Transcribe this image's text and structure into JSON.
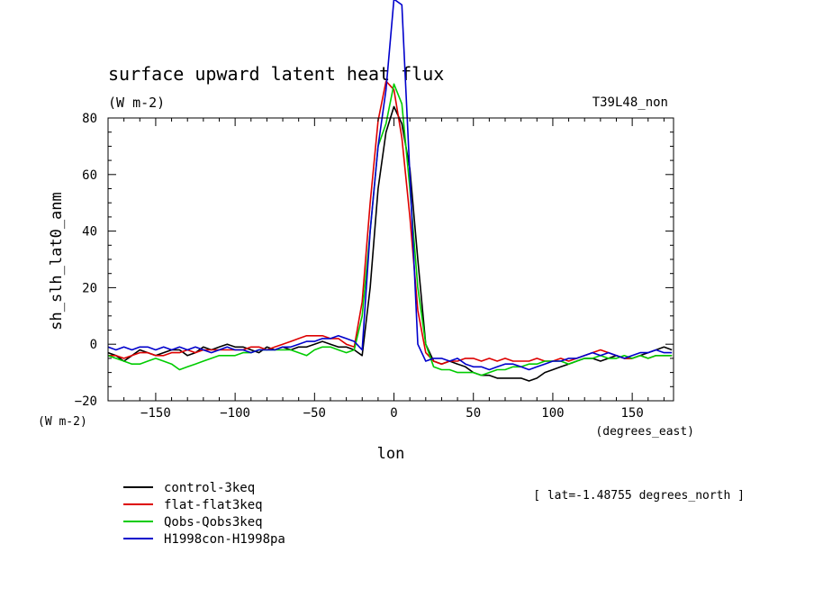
{
  "chart_data": {
    "type": "line",
    "title": "surface upward latent heat flux",
    "units_top": "(W m-2)",
    "units_left": "(W m-2)",
    "experiment_label": "T39L48_non",
    "xlabel": "lon",
    "x_units": "(degrees_east)",
    "ylabel": "sh_slh_lat0_anm",
    "note": "[ lat=-1.48755 degrees_north ]",
    "xlim": [
      -180,
      176
    ],
    "ylim": [
      -20,
      80
    ],
    "xticks": [
      -150,
      -100,
      -50,
      0,
      50,
      100,
      150
    ],
    "yticks": [
      -20,
      0,
      20,
      40,
      60,
      80
    ],
    "xticks_labels": [
      "−150",
      "−100",
      "−50",
      "0",
      "50",
      "100",
      "150"
    ],
    "yticks_labels": [
      "−20",
      "0",
      "20",
      "40",
      "60",
      "80"
    ],
    "x": [
      -180,
      -175,
      -170,
      -165,
      -160,
      -155,
      -150,
      -145,
      -140,
      -135,
      -130,
      -125,
      -120,
      -115,
      -110,
      -105,
      -100,
      -95,
      -90,
      -85,
      -80,
      -75,
      -70,
      -65,
      -60,
      -55,
      -50,
      -45,
      -40,
      -35,
      -30,
      -25,
      -20,
      -15,
      -10,
      -5,
      0,
      5,
      10,
      15,
      20,
      25,
      30,
      35,
      40,
      45,
      50,
      55,
      60,
      65,
      70,
      75,
      80,
      85,
      90,
      95,
      100,
      105,
      110,
      115,
      120,
      125,
      130,
      135,
      140,
      145,
      150,
      155,
      160,
      165,
      170,
      175
    ],
    "series": [
      {
        "name": "control-3keq",
        "color": "#000000",
        "values": [
          -3,
          -4,
          -6,
          -4,
          -2,
          -3,
          -4,
          -3,
          -2,
          -2,
          -4,
          -3,
          -1,
          -2,
          -1,
          0,
          -1,
          -1,
          -2,
          -3,
          -1,
          -2,
          -1,
          -2,
          -1,
          -1,
          0,
          1,
          0,
          -1,
          -1,
          -2,
          -4,
          20,
          55,
          75,
          84,
          78,
          62,
          30,
          0,
          -6,
          -7,
          -6,
          -7,
          -8,
          -10,
          -11,
          -11,
          -12,
          -12,
          -12,
          -12,
          -13,
          -12,
          -10,
          -9,
          -8,
          -7,
          -6,
          -5,
          -5,
          -6,
          -5,
          -4,
          -5,
          -5,
          -4,
          -3,
          -2,
          -1,
          -2
        ]
      },
      {
        "name": "flat-flat3keq",
        "color": "#dd0000",
        "values": [
          -4,
          -4,
          -5,
          -4,
          -3,
          -3,
          -4,
          -4,
          -3,
          -3,
          -2,
          -3,
          -2,
          -2,
          -2,
          -2,
          -2,
          -2,
          -1,
          -1,
          -2,
          -1,
          0,
          1,
          2,
          3,
          3,
          3,
          2,
          2,
          0,
          -1,
          15,
          50,
          79,
          93,
          90,
          73,
          45,
          12,
          -3,
          -6,
          -7,
          -6,
          -6,
          -5,
          -5,
          -6,
          -5,
          -6,
          -5,
          -6,
          -6,
          -6,
          -5,
          -6,
          -6,
          -5,
          -6,
          -5,
          -4,
          -3,
          -2,
          -3,
          -4,
          -5,
          -5,
          -4,
          -5,
          -4,
          -4,
          -4
        ]
      },
      {
        "name": "Qobs-Qobs3keq",
        "color": "#00cc00",
        "values": [
          -4,
          -5,
          -6,
          -7,
          -7,
          -6,
          -5,
          -6,
          -7,
          -9,
          -8,
          -7,
          -6,
          -5,
          -4,
          -4,
          -4,
          -3,
          -3,
          -2,
          -2,
          -2,
          -2,
          -2,
          -3,
          -4,
          -2,
          -1,
          -1,
          -2,
          -3,
          -2,
          10,
          40,
          70,
          78,
          92,
          85,
          55,
          20,
          0,
          -8,
          -9,
          -9,
          -10,
          -10,
          -10,
          -11,
          -10,
          -9,
          -9,
          -8,
          -8,
          -7,
          -7,
          -6,
          -6,
          -6,
          -7,
          -6,
          -5,
          -5,
          -4,
          -5,
          -5,
          -4,
          -5,
          -4,
          -5,
          -4,
          -4,
          -4
        ]
      },
      {
        "name": "H1998con-H1998pa",
        "color": "#0000cc",
        "values": [
          -1,
          -2,
          -1,
          -2,
          -1,
          -1,
          -2,
          -1,
          -2,
          -1,
          -2,
          -1,
          -2,
          -3,
          -2,
          -1,
          -2,
          -2,
          -3,
          -2,
          -2,
          -2,
          -1,
          -1,
          0,
          1,
          1,
          2,
          2,
          3,
          2,
          1,
          -2,
          40,
          70,
          90,
          122,
          120,
          60,
          0,
          -6,
          -5,
          -5,
          -6,
          -5,
          -7,
          -8,
          -8,
          -9,
          -8,
          -7,
          -7,
          -8,
          -9,
          -8,
          -7,
          -6,
          -6,
          -5,
          -5,
          -4,
          -3,
          -4,
          -3,
          -4,
          -5,
          -4,
          -3,
          -3,
          -2,
          -3,
          -3
        ]
      }
    ]
  }
}
